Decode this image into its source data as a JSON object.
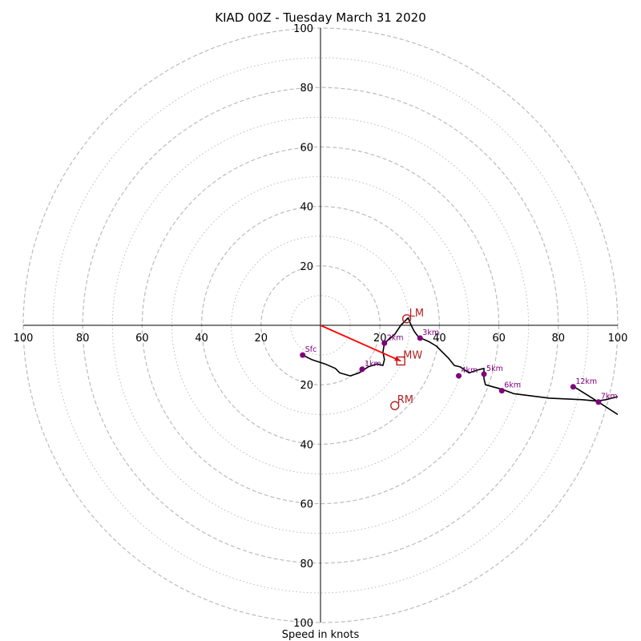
{
  "chart_data": {
    "type": "hodograph",
    "title": "KIAD 00Z - Tuesday March 31 2020",
    "xlabel": "Speed in knots",
    "ylabel": "",
    "xlim": [
      -100,
      100
    ],
    "ylim": [
      -100,
      100
    ],
    "rings": {
      "major": [
        20,
        40,
        60,
        80,
        100
      ],
      "minor": [
        10,
        30,
        50,
        70,
        90
      ]
    },
    "tick_values": [
      20,
      40,
      60,
      80,
      100
    ],
    "colors": {
      "trace": "#000000",
      "points": "#800080",
      "motion": "#b22222",
      "mean_wind_vector": "#ff0000",
      "grid": "#bbbbbb"
    },
    "trace": [
      [
        -6,
        -10
      ],
      [
        -3,
        -11.5
      ],
      [
        1.5,
        -13
      ],
      [
        5,
        -14.5
      ],
      [
        6.5,
        -16
      ],
      [
        10,
        -17
      ],
      [
        13,
        -16
      ],
      [
        16,
        -14
      ],
      [
        19,
        -13
      ],
      [
        21,
        -13.5
      ],
      [
        21.5,
        -11.5
      ],
      [
        21,
        -9
      ],
      [
        21.5,
        -6
      ],
      [
        25,
        -3
      ],
      [
        27,
        0
      ],
      [
        29.5,
        2.5
      ],
      [
        30.5,
        0
      ],
      [
        31.5,
        -2
      ],
      [
        33,
        -4
      ],
      [
        36.5,
        -5.5
      ],
      [
        39,
        -7
      ],
      [
        43,
        -11
      ],
      [
        45,
        -13.5
      ],
      [
        47,
        -14
      ],
      [
        50,
        -16
      ],
      [
        53,
        -15
      ],
      [
        55,
        -14.5
      ],
      [
        55,
        -18
      ],
      [
        55.5,
        -20
      ],
      [
        61,
        -21.5
      ],
      [
        65,
        -23
      ],
      [
        77,
        -24.5
      ],
      [
        88,
        -25
      ],
      [
        93,
        -25.5
      ],
      [
        96,
        -25
      ],
      [
        100,
        -24
      ]
    ],
    "trace_upper": [
      [
        85,
        -20.5
      ],
      [
        93,
        -25.5
      ],
      [
        100,
        -30
      ]
    ],
    "height_points": [
      {
        "label": "Sfc",
        "u": -6,
        "v": -10
      },
      {
        "label": "1km",
        "u": 14,
        "v": -14.8
      },
      {
        "label": "2km",
        "u": 21.5,
        "v": -6
      },
      {
        "label": "3km",
        "u": 33.5,
        "v": -4.3
      },
      {
        "label": "4km",
        "u": 46.5,
        "v": -17
      },
      {
        "label": "5km",
        "u": 55,
        "v": -16.4
      },
      {
        "label": "6km",
        "u": 61,
        "v": -22
      },
      {
        "label": "7km",
        "u": 93.5,
        "v": -25.8
      },
      {
        "label": "12km",
        "u": 85,
        "v": -20.7
      }
    ],
    "storm_motions": [
      {
        "label": "LM",
        "u": 29,
        "v": 2.2,
        "marker": "circle"
      },
      {
        "label": "RM",
        "u": 25,
        "v": -27,
        "marker": "circle"
      },
      {
        "label": "MW",
        "u": 27,
        "v": -12,
        "marker": "square"
      }
    ],
    "mean_wind_vector": {
      "u": 27,
      "v": -12
    }
  }
}
